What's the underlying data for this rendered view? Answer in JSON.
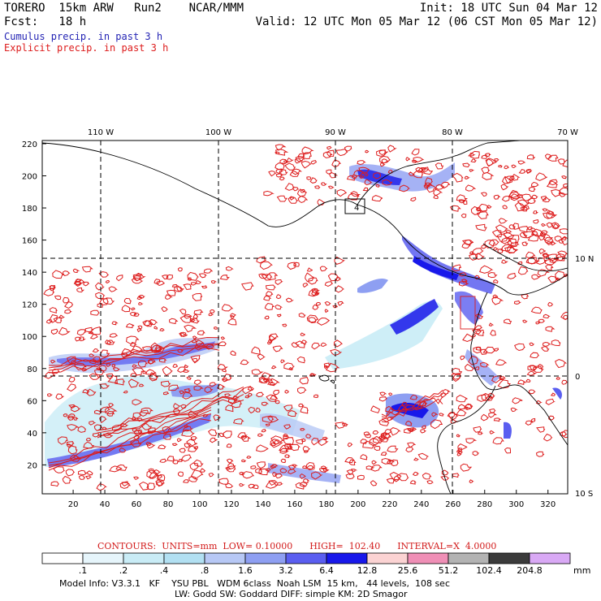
{
  "header": {
    "model": "TORERO  15km ARW   Run2    NCAR/MMM",
    "init": "Init: 18 UTC Sun 04 Mar 12",
    "fcst": "Fcst:   18 h",
    "valid": "Valid: 12 UTC Mon 05 Mar 12 (06 CST Mon 05 Mar 12)",
    "field1": "Cumulus precip. in past 3 h",
    "field2": "Explicit precip. in past 3 h",
    "field1_color": "#2424b4",
    "field2_color": "#dd1c1c"
  },
  "map": {
    "top_lon_labels": [
      "110 W",
      "100 W",
      "90 W",
      "80 W",
      "70 W"
    ],
    "right_lat_labels": [
      "10 N",
      "0",
      "10 S"
    ],
    "y_ticks": [
      "220",
      "200",
      "180",
      "160",
      "140",
      "120",
      "100",
      "80",
      "60",
      "40",
      "20"
    ],
    "x_ticks": [
      "20",
      "40",
      "60",
      "80",
      "100",
      "120",
      "140",
      "160",
      "180",
      "200",
      "220",
      "240",
      "260",
      "280",
      "300",
      "320"
    ],
    "box_label": "4"
  },
  "contour_info": "CONTOURS:  UNITS=mm  LOW= 0.10000      HIGH=  102.40      INTERVAL=X  4.0000",
  "colorbar": {
    "unit": "mm",
    "labels": [
      ".1",
      ".2",
      ".4",
      ".8",
      "1.6",
      "3.2",
      "6.4",
      "12.8",
      "25.6",
      "51.2",
      "102.4",
      "204.8"
    ],
    "colors": [
      "#ffffff",
      "#e6f5fb",
      "#c9ecf6",
      "#b2e0f2",
      "#b7c8f5",
      "#8e9ff2",
      "#5a5ef0",
      "#1818ea",
      "#fbd3d3",
      "#ef8fb6",
      "#b3b3b3",
      "#3b3b3b",
      "#d9a9f5"
    ]
  },
  "model_info": {
    "line1": "Model Info: V3.3.1   KF    YSU PBL   WDM 6class  Noah LSM  15 km,   44 levels,  108 sec",
    "line2": "LW: Godd SW: Goddard DIFF: simple KM: 2D Smagor"
  }
}
